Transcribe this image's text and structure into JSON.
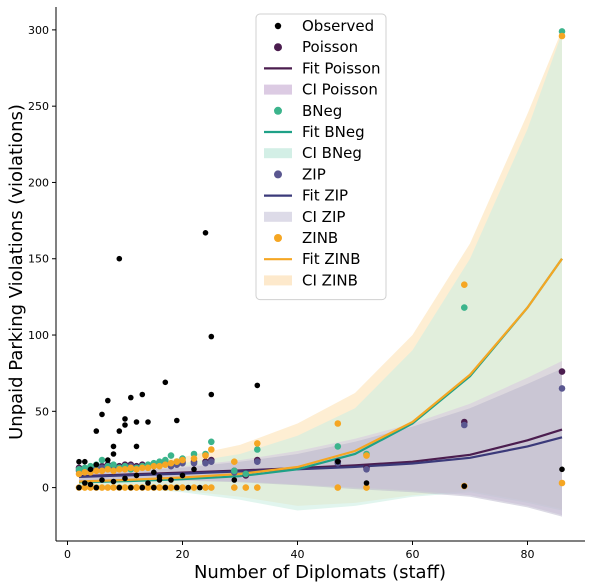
{
  "chart_data": {
    "type": "scatter",
    "xlabel": "Number of Diplomats (staff)",
    "ylabel": "Unpaid Parking Violations (violations)",
    "xlim": [
      -2,
      90
    ],
    "ylim": [
      -35,
      315
    ],
    "xticks": [
      0,
      20,
      40,
      60,
      80
    ],
    "yticks": [
      0,
      50,
      100,
      150,
      200,
      250,
      300
    ],
    "grid": false,
    "legend_position": "top-center",
    "colors": {
      "observed": "#000000",
      "poisson": "#4b1d4f",
      "bneg": "#1fa187",
      "zip": "#3b3a7a",
      "zinb": "#f5a623"
    },
    "legend": [
      {
        "label": "Observed",
        "kind": "marker",
        "key": "observed"
      },
      {
        "label": "Poisson",
        "kind": "marker",
        "key": "poisson"
      },
      {
        "label": "Fit Poisson",
        "kind": "line",
        "key": "poisson"
      },
      {
        "label": "CI Poisson",
        "kind": "band",
        "key": "poisson"
      },
      {
        "label": "BNeg",
        "kind": "marker",
        "key": "bneg"
      },
      {
        "label": "Fit BNeg",
        "kind": "line",
        "key": "bneg"
      },
      {
        "label": "CI BNeg",
        "kind": "band",
        "key": "bneg"
      },
      {
        "label": "ZIP",
        "kind": "marker",
        "key": "zip"
      },
      {
        "label": "Fit ZIP",
        "kind": "line",
        "key": "zip"
      },
      {
        "label": "CI ZIP",
        "kind": "band",
        "key": "zip"
      },
      {
        "label": "ZINB",
        "kind": "marker",
        "key": "zinb"
      },
      {
        "label": "Fit ZINB",
        "kind": "line",
        "key": "zinb"
      },
      {
        "label": "CI ZINB",
        "kind": "band",
        "key": "zinb"
      }
    ],
    "observed": {
      "x": [
        2,
        3,
        4,
        5,
        5,
        6,
        7,
        7,
        8,
        8,
        9,
        9,
        10,
        10,
        11,
        12,
        12,
        13,
        14,
        15,
        16,
        17,
        18,
        19,
        20,
        22,
        24,
        25,
        25,
        29,
        33,
        47,
        52,
        69,
        86,
        3,
        4,
        6,
        8,
        10,
        12,
        14,
        16,
        2,
        5,
        9,
        11,
        13,
        15,
        17,
        19,
        21,
        23
      ],
      "y": [
        17,
        17,
        12,
        37,
        15,
        48,
        57,
        18,
        27,
        22,
        150,
        37,
        45,
        41,
        59,
        43,
        27,
        61,
        43,
        10,
        7,
        69,
        5,
        44,
        8,
        12,
        167,
        99,
        61,
        5,
        67,
        17,
        3,
        1,
        12,
        3,
        2,
        5,
        4,
        6,
        8,
        3,
        5,
        0,
        0,
        0,
        0,
        0,
        0,
        0,
        0,
        0,
        0
      ]
    },
    "poisson": {
      "x": [
        2,
        3,
        4,
        5,
        6,
        7,
        8,
        9,
        10,
        11,
        12,
        13,
        14,
        15,
        16,
        17,
        18,
        19,
        20,
        22,
        24,
        25,
        29,
        31,
        33,
        47,
        52,
        69,
        86
      ],
      "y": [
        13,
        12,
        13,
        14,
        14,
        15,
        13,
        14,
        15,
        15,
        14,
        15,
        14,
        15,
        16,
        16,
        15,
        16,
        17,
        17,
        17,
        18,
        11,
        8,
        18,
        17,
        13,
        43,
        76
      ]
    },
    "bneg": {
      "x": [
        2,
        3,
        4,
        5,
        6,
        7,
        8,
        9,
        10,
        11,
        12,
        13,
        14,
        15,
        16,
        17,
        18,
        19,
        20,
        22,
        24,
        25,
        29,
        31,
        33,
        47,
        52,
        69,
        86
      ],
      "y": [
        12,
        13,
        14,
        15,
        18,
        14,
        15,
        13,
        14,
        12,
        13,
        14,
        15,
        16,
        17,
        18,
        21,
        17,
        19,
        22,
        22,
        30,
        11,
        9,
        25,
        27,
        22,
        118,
        299
      ]
    },
    "zip": {
      "x": [
        2,
        3,
        4,
        5,
        6,
        7,
        8,
        9,
        10,
        11,
        12,
        13,
        14,
        15,
        16,
        17,
        18,
        19,
        20,
        22,
        24,
        25,
        29,
        33,
        47,
        52,
        69,
        86
      ],
      "y": [
        11,
        12,
        12,
        13,
        13,
        14,
        12,
        13,
        14,
        14,
        13,
        14,
        14,
        15,
        15,
        16,
        14,
        15,
        16,
        16,
        16,
        17,
        10,
        17,
        16,
        12,
        41,
        65
      ]
    },
    "zinb": {
      "x": [
        2,
        3,
        4,
        5,
        6,
        7,
        8,
        9,
        10,
        11,
        12,
        13,
        14,
        15,
        16,
        17,
        18,
        19,
        20,
        22,
        24,
        25,
        29,
        33,
        47,
        52,
        69,
        86,
        2,
        3,
        4,
        5,
        6,
        7,
        8,
        9,
        10,
        11,
        12,
        13,
        14,
        15,
        16,
        17,
        18,
        19,
        20,
        22,
        24,
        25,
        29,
        31,
        33,
        47,
        52,
        69,
        86
      ],
      "y": [
        9,
        10,
        10,
        11,
        11,
        12,
        11,
        12,
        12,
        13,
        12,
        13,
        13,
        14,
        14,
        15,
        16,
        17,
        18,
        19,
        21,
        25,
        17,
        29,
        42,
        21,
        133,
        296,
        0,
        0,
        0,
        0,
        0,
        0,
        0,
        0,
        0,
        0,
        0,
        0,
        0,
        0,
        0,
        0,
        0,
        0,
        0,
        0,
        0,
        0,
        0,
        0,
        0,
        0,
        0,
        1,
        3
      ]
    },
    "fits": {
      "x": [
        2,
        10,
        20,
        30,
        40,
        50,
        60,
        70,
        80,
        86
      ],
      "poisson": [
        7.5,
        8.5,
        9.8,
        11.2,
        12.8,
        14.6,
        17,
        21.5,
        31,
        38
      ],
      "zip": [
        7,
        8,
        9.2,
        10.6,
        12,
        13.6,
        15.8,
        19.5,
        27,
        33
      ],
      "bneg": [
        3.5,
        4.2,
        5.5,
        7.5,
        12,
        22,
        42,
        73,
        118,
        150
      ],
      "zinb": [
        4,
        5,
        6.6,
        9,
        13.5,
        24,
        43,
        74,
        118,
        150
      ]
    },
    "ci": {
      "x": [
        2,
        10,
        20,
        30,
        40,
        50,
        60,
        70,
        80,
        86
      ],
      "poisson_low": [
        4,
        4.5,
        5,
        4,
        2,
        0,
        -2,
        -5,
        -12,
        -18
      ],
      "poisson_high": [
        11,
        12,
        14,
        18,
        24,
        32,
        42,
        55,
        72,
        83
      ],
      "zip_low": [
        4,
        4,
        4.5,
        3.5,
        1.5,
        -1,
        -3,
        -6,
        -13,
        -19
      ],
      "zip_high": [
        10,
        11,
        13,
        17,
        22,
        30,
        40,
        52,
        68,
        78
      ],
      "bneg_low": [
        0,
        0,
        -3,
        -8,
        -15,
        -12,
        -6,
        -3,
        -10,
        -15
      ],
      "bneg_high": [
        10,
        12,
        16,
        22,
        34,
        52,
        90,
        150,
        235,
        298
      ],
      "zinb_low": [
        0,
        0,
        -2,
        -6,
        -12,
        -10,
        -5,
        -2,
        -9,
        -14
      ],
      "zinb_high": [
        12,
        14,
        20,
        28,
        42,
        62,
        100,
        160,
        245,
        300
      ]
    }
  }
}
